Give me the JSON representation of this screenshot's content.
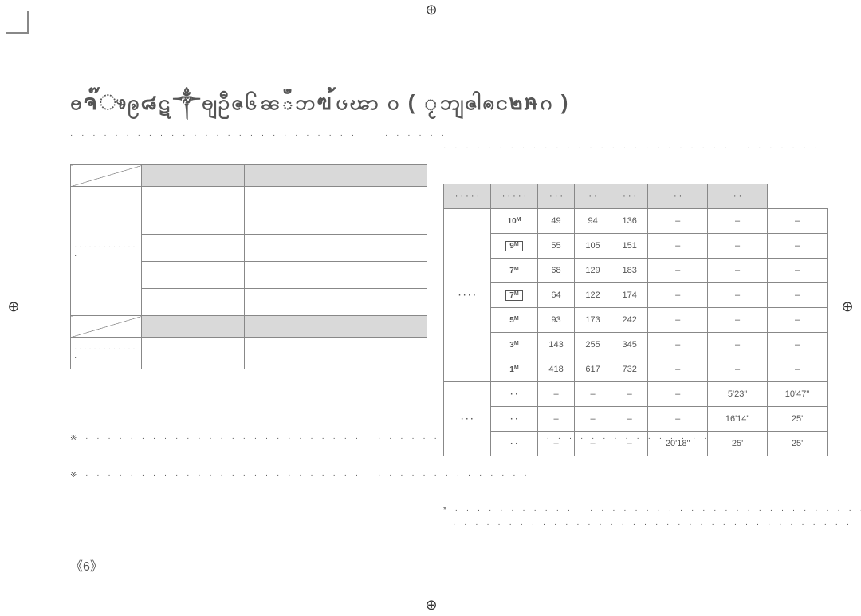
{
  "title": "ႎຈ๊ෳဨ๘ဋ๭༒ႎျဦဇ၆๬ၼఀဘฃ๯้ၒၽာ ၀ ( ႂ๵ဘျဇါၐင๒ໞ໪ဂ )",
  "page_number": "《6》",
  "dotted_pattern": "·  ·  ·  ·  ·  ·  ·  ·  ·  ·  ·  ·  ·  ·  ·  ·  ·  ·  ·  ·  ·  ·  ·  ·  ·  ·  ·  ·  ·  ·  ·  ·  ·  ·",
  "note_marker": "※",
  "footnote_marker": "*",
  "left_table": {
    "shaded_header_cells": [
      "",
      "",
      "",
      ""
    ],
    "row_label_1": "· · · · · · · · · · · · · ·",
    "row_label_2": "· · · · · · · · · · · · · ·"
  },
  "main_table": {
    "header_col1": "· · · · ·",
    "header_col2": "· · · · ·",
    "header_cols": [
      "· · ·",
      "· ·",
      "· · ·",
      "· ·",
      "· ·"
    ],
    "rows": [
      {
        "label": "10",
        "sup": "M",
        "boxed": false,
        "cells": [
          "49",
          "94",
          "136",
          "–",
          "–",
          "–"
        ]
      },
      {
        "label": "9",
        "sup": "M",
        "boxed": true,
        "cells": [
          "55",
          "105",
          "151",
          "–",
          "–",
          "–"
        ]
      },
      {
        "label": "7",
        "sup": "M",
        "boxed": false,
        "cells": [
          "68",
          "129",
          "183",
          "–",
          "–",
          "–"
        ]
      },
      {
        "label": "7",
        "sup": "M",
        "boxed": true,
        "cells": [
          "64",
          "122",
          "174",
          "–",
          "–",
          "–"
        ]
      },
      {
        "label": "5",
        "sup": "M",
        "boxed": false,
        "cells": [
          "93",
          "173",
          "242",
          "–",
          "–",
          "–"
        ]
      },
      {
        "label": "3",
        "sup": "M",
        "boxed": false,
        "cells": [
          "143",
          "255",
          "345",
          "–",
          "–",
          "–"
        ]
      },
      {
        "label": "1",
        "sup": "M",
        "boxed": false,
        "cells": [
          "418",
          "617",
          "732",
          "–",
          "–",
          "–"
        ]
      }
    ],
    "footer_rows": [
      {
        "label": "",
        "cells": [
          "–",
          "–",
          "–",
          "–",
          "5'23\"",
          "10'47\""
        ]
      },
      {
        "label": "",
        "cells": [
          "–",
          "–",
          "–",
          "–",
          "16'14\"",
          "25'"
        ]
      },
      {
        "label": "",
        "cells": [
          "–",
          "–",
          "–",
          "20'18\"",
          "25'",
          "25'"
        ]
      }
    ]
  },
  "colors": {
    "border": "#888888",
    "text": "#555555",
    "shade": "#d9d9d9"
  }
}
